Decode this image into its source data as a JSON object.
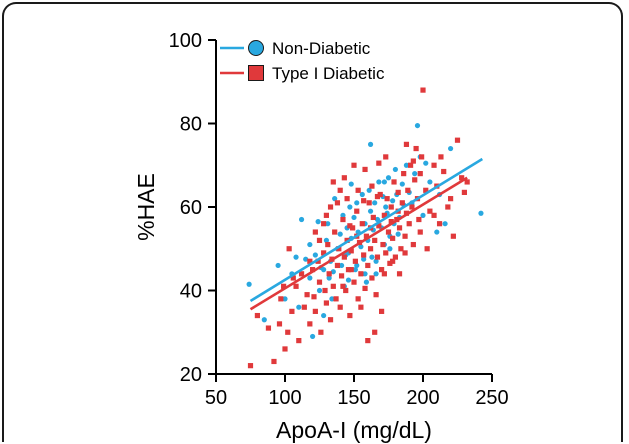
{
  "chart_data": {
    "type": "scatter",
    "title": "",
    "xlabel": "ApoA-I (mg/dL)",
    "ylabel": "%HAE",
    "xlim": [
      50,
      250
    ],
    "ylim": [
      20,
      100
    ],
    "xticks": [
      "50",
      "100",
      "150",
      "200",
      "250"
    ],
    "yticks": [
      "20",
      "40",
      "60",
      "80",
      "100"
    ],
    "grid": false,
    "legend_position": "top-left",
    "series": [
      {
        "name": "Non-Diabetic",
        "color": "#29a8e0",
        "marker": "circle",
        "trendline": {
          "x": [
            75,
            243
          ],
          "y": [
            37.5,
            71.5
          ]
        },
        "points": [
          [
            74,
            41.5
          ],
          [
            85,
            33
          ],
          [
            95,
            46
          ],
          [
            100,
            38
          ],
          [
            105,
            44
          ],
          [
            110,
            36
          ],
          [
            112,
            57
          ],
          [
            115,
            47.5
          ],
          [
            118,
            43
          ],
          [
            120,
            29
          ],
          [
            122,
            48.5
          ],
          [
            125,
            40
          ],
          [
            126,
            45.5
          ],
          [
            128,
            34
          ],
          [
            130,
            52
          ],
          [
            131,
            56
          ],
          [
            133,
            47
          ],
          [
            135,
            44.5
          ],
          [
            136,
            62
          ],
          [
            138,
            50
          ],
          [
            140,
            53.5
          ],
          [
            141,
            46
          ],
          [
            142,
            58
          ],
          [
            143,
            41
          ],
          [
            145,
            55
          ],
          [
            146,
            49
          ],
          [
            147,
            60
          ],
          [
            148,
            52.5
          ],
          [
            150,
            57.5
          ],
          [
            151,
            45
          ],
          [
            152,
            61
          ],
          [
            153,
            54
          ],
          [
            155,
            50.5
          ],
          [
            156,
            63
          ],
          [
            157,
            47.5
          ],
          [
            158,
            56
          ],
          [
            160,
            52
          ],
          [
            161,
            64
          ],
          [
            162,
            59
          ],
          [
            163,
            48
          ],
          [
            164,
            54.5
          ],
          [
            165,
            61
          ],
          [
            166,
            44
          ],
          [
            167,
            57
          ],
          [
            168,
            66
          ],
          [
            170,
            55
          ],
          [
            171,
            62.5
          ],
          [
            172,
            51
          ],
          [
            173,
            60
          ],
          [
            174,
            58.5
          ],
          [
            175,
            67
          ],
          [
            176,
            53
          ],
          [
            178,
            61.5
          ],
          [
            179,
            56
          ],
          [
            180,
            69
          ],
          [
            181,
            63
          ],
          [
            183,
            57.5
          ],
          [
            185,
            65.5
          ],
          [
            186,
            60.5
          ],
          [
            188,
            70
          ],
          [
            190,
            63.5
          ],
          [
            192,
            61
          ],
          [
            194,
            68
          ],
          [
            196,
            79.5
          ],
          [
            198,
            72
          ],
          [
            200,
            58
          ],
          [
            202,
            70.5
          ],
          [
            205,
            66
          ],
          [
            210,
            54
          ],
          [
            212,
            63
          ],
          [
            216,
            56
          ],
          [
            220,
            74
          ],
          [
            108,
            48
          ],
          [
            118,
            51
          ],
          [
            132,
            43
          ],
          [
            144,
            48.5
          ],
          [
            152,
            46
          ],
          [
            159,
            42
          ],
          [
            166,
            47
          ],
          [
            172,
            66
          ],
          [
            182,
            53.5
          ],
          [
            148,
            65.5
          ],
          [
            162,
            75
          ],
          [
            158,
            44
          ],
          [
            124,
            56.5
          ],
          [
            134,
            38
          ],
          [
            146,
            42.5
          ],
          [
            128,
            45
          ],
          [
            176,
            50
          ],
          [
            242,
            58.5
          ]
        ]
      },
      {
        "name": "Type I Diabetic",
        "color": "#e0393b",
        "marker": "square",
        "trendline": {
          "x": [
            75,
            232
          ],
          "y": [
            35.5,
            67
          ]
        },
        "points": [
          [
            75,
            22
          ],
          [
            80,
            34
          ],
          [
            88,
            31
          ],
          [
            92,
            23
          ],
          [
            97,
            38
          ],
          [
            100,
            26
          ],
          [
            102,
            30
          ],
          [
            105,
            35
          ],
          [
            108,
            41
          ],
          [
            110,
            28
          ],
          [
            112,
            44
          ],
          [
            114,
            36
          ],
          [
            116,
            39
          ],
          [
            118,
            32
          ],
          [
            120,
            45
          ],
          [
            121,
            38.5
          ],
          [
            122,
            35
          ],
          [
            124,
            47
          ],
          [
            125,
            42
          ],
          [
            126,
            30
          ],
          [
            128,
            49
          ],
          [
            129,
            40
          ],
          [
            130,
            37
          ],
          [
            131,
            51
          ],
          [
            132,
            44
          ],
          [
            133,
            33
          ],
          [
            134,
            47.5
          ],
          [
            135,
            41
          ],
          [
            136,
            54
          ],
          [
            137,
            38
          ],
          [
            138,
            46
          ],
          [
            139,
            50
          ],
          [
            140,
            36
          ],
          [
            141,
            43.5
          ],
          [
            142,
            57
          ],
          [
            143,
            48
          ],
          [
            144,
            40
          ],
          [
            145,
            52
          ],
          [
            146,
            45
          ],
          [
            147,
            34
          ],
          [
            148,
            49.5
          ],
          [
            149,
            55
          ],
          [
            150,
            42
          ],
          [
            151,
            47
          ],
          [
            152,
            59
          ],
          [
            153,
            38
          ],
          [
            154,
            51.5
          ],
          [
            155,
            44
          ],
          [
            156,
            56
          ],
          [
            157,
            48.5
          ],
          [
            158,
            40.5
          ],
          [
            159,
            53
          ],
          [
            160,
            46
          ],
          [
            161,
            61
          ],
          [
            162,
            50
          ],
          [
            163,
            43
          ],
          [
            164,
            57.5
          ],
          [
            165,
            52
          ],
          [
            166,
            39
          ],
          [
            167,
            48
          ],
          [
            168,
            55.5
          ],
          [
            169,
            63
          ],
          [
            170,
            45
          ],
          [
            171,
            51
          ],
          [
            172,
            58
          ],
          [
            173,
            49
          ],
          [
            174,
            62
          ],
          [
            175,
            54
          ],
          [
            176,
            46.5
          ],
          [
            177,
            60
          ],
          [
            178,
            52.5
          ],
          [
            179,
            66
          ],
          [
            180,
            48
          ],
          [
            181,
            57
          ],
          [
            182,
            63.5
          ],
          [
            183,
            55
          ],
          [
            184,
            50
          ],
          [
            185,
            61
          ],
          [
            186,
            68
          ],
          [
            187,
            53
          ],
          [
            188,
            58.5
          ],
          [
            189,
            64
          ],
          [
            190,
            56
          ],
          [
            191,
            70
          ],
          [
            192,
            60
          ],
          [
            193,
            51
          ],
          [
            194,
            66.5
          ],
          [
            195,
            74
          ],
          [
            196,
            62
          ],
          [
            197,
            57
          ],
          [
            198,
            68
          ],
          [
            199,
            72
          ],
          [
            200,
            88
          ],
          [
            202,
            64
          ],
          [
            205,
            59
          ],
          [
            208,
            70
          ],
          [
            210,
            65
          ],
          [
            212,
            56
          ],
          [
            215,
            68.5
          ],
          [
            218,
            60
          ],
          [
            220,
            62
          ],
          [
            222,
            53
          ],
          [
            225,
            76
          ],
          [
            228,
            67
          ],
          [
            230,
            63.5
          ],
          [
            232,
            66
          ],
          [
            160,
            28
          ],
          [
            165,
            30
          ],
          [
            170,
            35
          ],
          [
            155,
            36
          ],
          [
            125,
            52
          ],
          [
            130,
            58
          ],
          [
            135,
            66
          ],
          [
            140,
            64
          ],
          [
            145,
            62
          ],
          [
            150,
            70
          ],
          [
            118,
            47
          ],
          [
            122,
            54
          ],
          [
            128,
            56
          ],
          [
            133,
            60
          ],
          [
            138,
            61
          ],
          [
            143,
            67
          ],
          [
            148,
            45
          ],
          [
            153,
            64
          ],
          [
            158,
            69
          ],
          [
            163,
            65
          ],
          [
            168,
            70.5
          ],
          [
            173,
            72
          ],
          [
            178,
            47
          ],
          [
            183,
            44
          ],
          [
            188,
            75
          ],
          [
            193,
            71
          ],
          [
            198,
            54
          ],
          [
            203,
            50
          ],
          [
            208,
            58
          ],
          [
            213,
            72
          ],
          [
            106,
            43
          ],
          [
            103,
            50
          ],
          [
            99,
            41
          ],
          [
            96,
            32
          ],
          [
            142,
            41
          ],
          [
            147,
            55.5
          ],
          [
            152,
            53
          ],
          [
            157,
            61.5
          ],
          [
            162,
            55
          ],
          [
            167,
            62.5
          ],
          [
            172,
            44
          ],
          [
            177,
            56.5
          ],
          [
            182,
            59
          ],
          [
            187,
            49
          ]
        ]
      }
    ]
  }
}
